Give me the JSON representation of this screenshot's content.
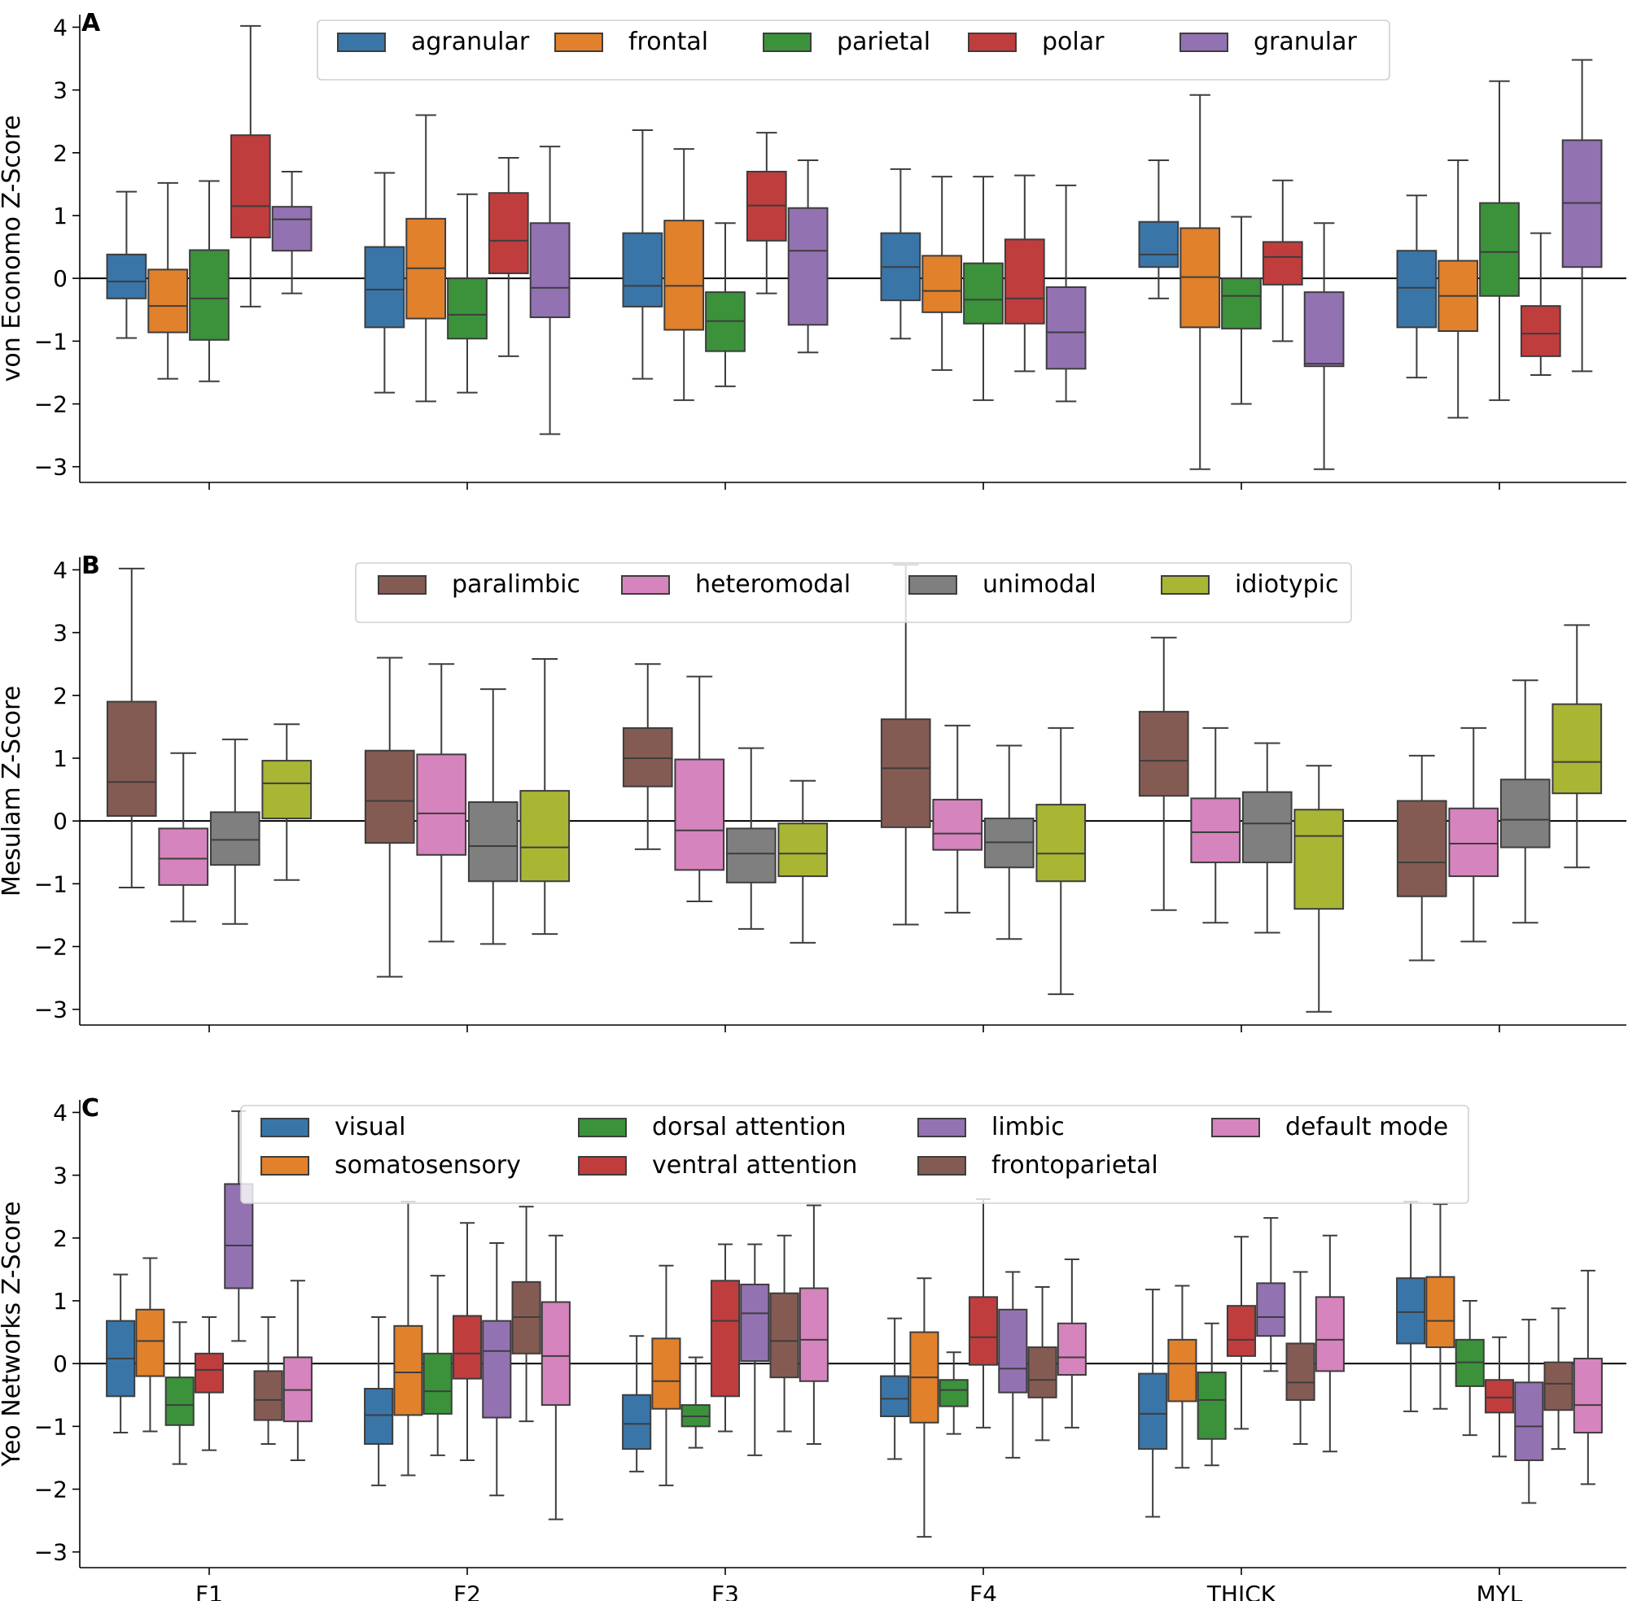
{
  "chart_data": [
    {
      "panel_label": "A",
      "type": "box",
      "ylabel": "von Economo Z-Score",
      "ylim": [
        -3.25,
        4.2
      ],
      "yticks": [
        "4",
        "3",
        "2",
        "1",
        "0",
        "−1",
        "−2",
        "−3"
      ],
      "categories": [
        "F1",
        "F2",
        "F3",
        "F4",
        "THICK",
        "MYL"
      ],
      "show_xtick_labels": false,
      "legend": {
        "columns": 5,
        "position": "top-center"
      },
      "series": [
        {
          "name": "agranular",
          "color": "#3a75a8",
          "boxes": [
            [
              -0.95,
              -0.32,
              -0.05,
              0.38,
              1.38
            ],
            [
              -1.82,
              -0.78,
              -0.18,
              0.5,
              1.68
            ],
            [
              -1.6,
              -0.45,
              -0.12,
              0.72,
              2.36
            ],
            [
              -0.96,
              -0.35,
              0.18,
              0.72,
              1.74
            ],
            [
              -0.32,
              0.18,
              0.38,
              0.9,
              1.88
            ],
            [
              -1.58,
              -0.78,
              -0.15,
              0.44,
              1.32
            ]
          ]
        },
        {
          "name": "frontal",
          "color": "#e1812c",
          "boxes": [
            [
              -1.6,
              -0.86,
              -0.44,
              0.14,
              1.52
            ],
            [
              -1.96,
              -0.64,
              0.16,
              0.95,
              2.6
            ],
            [
              -1.94,
              -0.82,
              -0.12,
              0.92,
              2.06
            ],
            [
              -1.46,
              -0.54,
              -0.2,
              0.36,
              1.62
            ],
            [
              -3.04,
              -0.78,
              0.02,
              0.8,
              2.92
            ],
            [
              -2.22,
              -0.84,
              -0.28,
              0.28,
              1.88
            ]
          ]
        },
        {
          "name": "parietal",
          "color": "#3b923b",
          "boxes": [
            [
              -1.64,
              -0.98,
              -0.32,
              0.45,
              1.55
            ],
            [
              -1.82,
              -0.96,
              -0.58,
              0.0,
              1.34
            ],
            [
              -1.72,
              -1.16,
              -0.68,
              -0.22,
              0.88
            ],
            [
              -1.94,
              -0.72,
              -0.34,
              0.24,
              1.62
            ],
            [
              -2.0,
              -0.8,
              -0.28,
              0.0,
              0.98
            ],
            [
              -1.94,
              -0.28,
              0.42,
              1.2,
              3.14
            ]
          ]
        },
        {
          "name": "polar",
          "color": "#c03d3e",
          "boxes": [
            [
              -0.45,
              0.65,
              1.15,
              2.28,
              4.02
            ],
            [
              -1.24,
              0.08,
              0.6,
              1.36,
              1.92
            ],
            [
              -0.24,
              0.6,
              1.16,
              1.7,
              2.32
            ],
            [
              -1.48,
              -0.72,
              -0.32,
              0.62,
              1.64
            ],
            [
              -1.0,
              -0.1,
              0.34,
              0.58,
              1.56
            ],
            [
              -1.54,
              -1.24,
              -0.88,
              -0.44,
              0.72
            ]
          ]
        },
        {
          "name": "granular",
          "color": "#9372b2",
          "boxes": [
            [
              -0.24,
              0.44,
              0.94,
              1.14,
              1.7
            ],
            [
              -2.48,
              -0.62,
              -0.15,
              0.88,
              2.1
            ],
            [
              -1.18,
              -0.74,
              0.44,
              1.12,
              1.88
            ],
            [
              -1.96,
              -1.44,
              -0.86,
              -0.14,
              1.48
            ],
            [
              -3.04,
              -1.4,
              -1.36,
              -0.22,
              0.88
            ],
            [
              -1.48,
              0.18,
              1.2,
              2.2,
              3.48
            ]
          ]
        }
      ]
    },
    {
      "panel_label": "B",
      "type": "box",
      "ylabel": "Mesulam Z-Score",
      "ylim": [
        -3.25,
        4.2
      ],
      "yticks": [
        "4",
        "3",
        "2",
        "1",
        "0",
        "−1",
        "−2",
        "−3"
      ],
      "categories": [
        "F1",
        "F2",
        "F3",
        "F4",
        "THICK",
        "MYL"
      ],
      "show_xtick_labels": false,
      "legend": {
        "columns": 4,
        "position": "top-center"
      },
      "series": [
        {
          "name": "paralimbic",
          "color": "#845b53",
          "boxes": [
            [
              -1.06,
              0.08,
              0.62,
              1.9,
              4.02
            ],
            [
              -2.48,
              -0.35,
              0.32,
              1.12,
              2.6
            ],
            [
              -0.45,
              0.55,
              1.0,
              1.48,
              2.5
            ],
            [
              -1.65,
              -0.1,
              0.84,
              1.62,
              4.08
            ],
            [
              -1.42,
              0.4,
              0.96,
              1.74,
              2.92
            ],
            [
              -2.22,
              -1.2,
              -0.66,
              0.32,
              1.04
            ]
          ]
        },
        {
          "name": "heteromodal",
          "color": "#d684bd",
          "boxes": [
            [
              -1.6,
              -1.02,
              -0.6,
              -0.12,
              1.08
            ],
            [
              -1.92,
              -0.54,
              0.12,
              1.06,
              2.5
            ],
            [
              -1.28,
              -0.78,
              -0.15,
              0.98,
              2.3
            ],
            [
              -1.46,
              -0.46,
              -0.2,
              0.34,
              1.52
            ],
            [
              -1.62,
              -0.66,
              -0.18,
              0.36,
              1.48
            ],
            [
              -1.92,
              -0.88,
              -0.36,
              0.2,
              1.48
            ]
          ]
        },
        {
          "name": "unimodal",
          "color": "#7f7f7f",
          "boxes": [
            [
              -1.64,
              -0.7,
              -0.3,
              0.14,
              1.3
            ],
            [
              -1.96,
              -0.96,
              -0.4,
              0.3,
              2.1
            ],
            [
              -1.72,
              -0.98,
              -0.52,
              -0.12,
              1.16
            ],
            [
              -1.88,
              -0.74,
              -0.34,
              0.04,
              1.2
            ],
            [
              -1.78,
              -0.66,
              -0.04,
              0.46,
              1.24
            ],
            [
              -1.62,
              -0.42,
              0.02,
              0.66,
              2.24
            ]
          ]
        },
        {
          "name": "idiotypic",
          "color": "#a9b634",
          "boxes": [
            [
              -0.94,
              0.04,
              0.6,
              0.96,
              1.54
            ],
            [
              -1.8,
              -0.96,
              -0.42,
              0.48,
              2.58
            ],
            [
              -1.94,
              -0.88,
              -0.52,
              -0.04,
              0.64
            ],
            [
              -2.76,
              -0.96,
              -0.52,
              0.26,
              1.48
            ],
            [
              -3.04,
              -1.4,
              -0.24,
              0.18,
              0.88
            ],
            [
              -0.74,
              0.44,
              0.94,
              1.86,
              3.12
            ]
          ]
        }
      ]
    },
    {
      "panel_label": "C",
      "type": "box",
      "ylabel": "Yeo Networks Z-Score",
      "ylim": [
        -3.25,
        4.2
      ],
      "yticks": [
        "4",
        "3",
        "2",
        "1",
        "0",
        "−1",
        "−2",
        "−3"
      ],
      "categories": [
        "F1",
        "F2",
        "F3",
        "F4",
        "THICK",
        "MYL"
      ],
      "show_xtick_labels": true,
      "legend": {
        "columns": 4,
        "position": "top-center"
      },
      "series": [
        {
          "name": "visual",
          "color": "#3a75a8",
          "boxes": [
            [
              -1.1,
              -0.52,
              0.08,
              0.68,
              1.42
            ],
            [
              -1.94,
              -1.28,
              -0.82,
              -0.4,
              0.74
            ],
            [
              -1.72,
              -1.36,
              -0.96,
              -0.5,
              0.44
            ],
            [
              -1.52,
              -0.84,
              -0.56,
              -0.2,
              0.72
            ],
            [
              -2.44,
              -1.36,
              -0.8,
              -0.16,
              1.18
            ],
            [
              -0.76,
              0.32,
              0.82,
              1.36,
              2.58
            ]
          ]
        },
        {
          "name": "somatosensory",
          "color": "#e1812c",
          "boxes": [
            [
              -1.08,
              -0.2,
              0.36,
              0.86,
              1.68
            ],
            [
              -1.78,
              -0.82,
              -0.14,
              0.6,
              2.58
            ],
            [
              -1.94,
              -0.72,
              -0.28,
              0.4,
              1.56
            ],
            [
              -2.76,
              -0.94,
              -0.22,
              0.5,
              1.36
            ],
            [
              -1.66,
              -0.6,
              0.0,
              0.38,
              1.24
            ],
            [
              -0.72,
              0.26,
              0.68,
              1.38,
              2.54
            ]
          ]
        },
        {
          "name": "dorsal attention",
          "color": "#3b923b",
          "boxes": [
            [
              -1.6,
              -0.98,
              -0.66,
              -0.22,
              0.66
            ],
            [
              -1.46,
              -0.8,
              -0.44,
              0.16,
              1.4
            ],
            [
              -1.34,
              -1.0,
              -0.84,
              -0.66,
              0.1
            ],
            [
              -1.12,
              -0.68,
              -0.42,
              -0.26,
              0.18
            ],
            [
              -1.62,
              -1.2,
              -0.58,
              -0.14,
              0.64
            ],
            [
              -1.14,
              -0.36,
              0.02,
              0.38,
              1.0
            ]
          ]
        },
        {
          "name": "ventral attention",
          "color": "#c03d3e",
          "boxes": [
            [
              -1.38,
              -0.46,
              -0.1,
              0.16,
              0.74
            ],
            [
              -1.54,
              -0.24,
              0.16,
              0.76,
              2.24
            ],
            [
              -1.08,
              -0.52,
              0.68,
              1.32,
              1.9
            ],
            [
              -1.02,
              -0.02,
              0.42,
              1.06,
              2.62
            ],
            [
              -1.04,
              0.12,
              0.38,
              0.92,
              2.02
            ],
            [
              -1.48,
              -0.78,
              -0.54,
              -0.26,
              0.42
            ]
          ]
        },
        {
          "name": "limbic",
          "color": "#9372b2",
          "boxes": [
            [
              0.36,
              1.2,
              1.88,
              2.86,
              4.02
            ],
            [
              -2.1,
              -0.86,
              0.2,
              0.68,
              1.92
            ],
            [
              -1.46,
              0.04,
              0.8,
              1.26,
              1.9
            ],
            [
              -1.5,
              -0.46,
              -0.08,
              0.86,
              1.46
            ],
            [
              -0.12,
              0.44,
              0.74,
              1.28,
              2.32
            ],
            [
              -2.22,
              -1.54,
              -1.0,
              -0.3,
              0.7
            ]
          ]
        },
        {
          "name": "frontoparietal",
          "color": "#845b53",
          "boxes": [
            [
              -1.28,
              -0.9,
              -0.58,
              -0.12,
              0.74
            ],
            [
              -0.92,
              0.16,
              0.74,
              1.3,
              2.5
            ],
            [
              -1.08,
              -0.22,
              0.36,
              1.12,
              2.04
            ],
            [
              -1.22,
              -0.54,
              -0.26,
              0.26,
              1.22
            ],
            [
              -1.28,
              -0.58,
              -0.3,
              0.32,
              1.46
            ],
            [
              -1.36,
              -0.74,
              -0.32,
              0.02,
              0.88
            ]
          ]
        },
        {
          "name": "default mode",
          "color": "#d684bd",
          "boxes": [
            [
              -1.54,
              -0.92,
              -0.42,
              0.1,
              1.32
            ],
            [
              -2.48,
              -0.66,
              0.12,
              0.98,
              2.04
            ],
            [
              -1.28,
              -0.28,
              0.38,
              1.2,
              2.52
            ],
            [
              -1.02,
              -0.18,
              0.1,
              0.64,
              1.66
            ],
            [
              -1.4,
              -0.12,
              0.38,
              1.06,
              2.04
            ],
            [
              -1.92,
              -1.1,
              -0.66,
              0.08,
              1.48
            ]
          ]
        }
      ]
    }
  ]
}
